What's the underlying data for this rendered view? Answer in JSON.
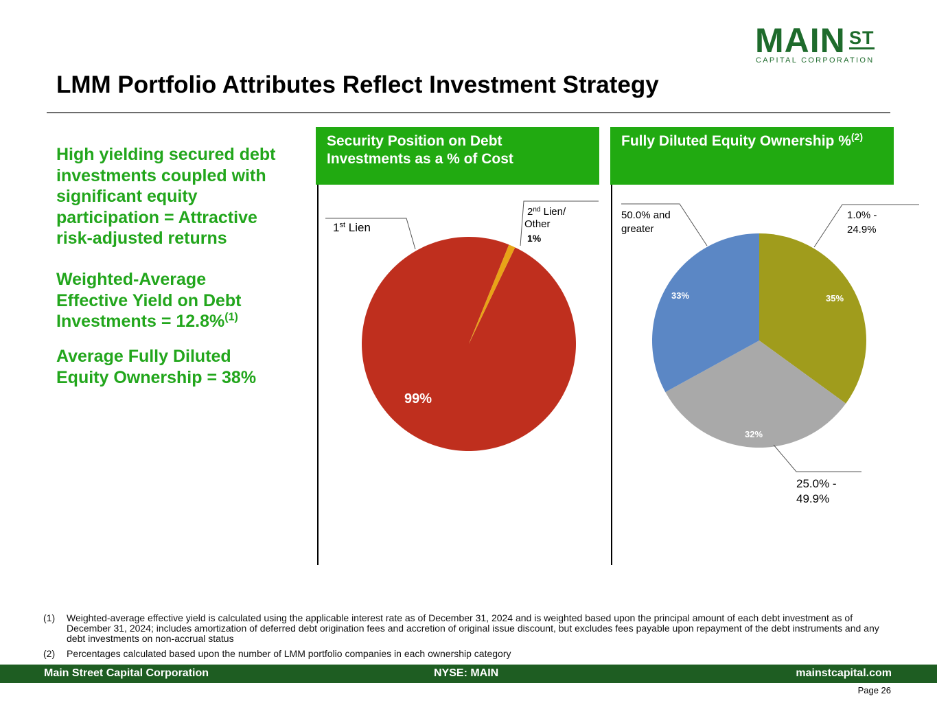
{
  "logo": {
    "main": "MAIN",
    "st": "ST",
    "sub": "CAPITAL CORPORATION"
  },
  "title": "LMM Portfolio Attributes Reflect Investment Strategy",
  "left": {
    "para1": "High yielding secured debt investments coupled with significant equity participation = Attractive risk-adjusted returns",
    "para2_text": "Weighted-Average Effective Yield on Debt Investments = 12.8%",
    "para2_sup": "(1)",
    "para3": "Average Fully Diluted Equity Ownership = 38%"
  },
  "panels": {
    "security_header": "Security Position on Debt Investments as a % of Cost",
    "equity_header": "Fully Diluted Equity Ownership %",
    "equity_header_sup": "(2)"
  },
  "chart_data": [
    {
      "type": "pie",
      "title": "Security Position on Debt Investments as a % of Cost",
      "slices": [
        {
          "label": "1st Lien",
          "label_base": "1",
          "label_sup": "st",
          "label_rest": " Lien",
          "value": 99,
          "value_label": "99%",
          "color": "#bf2f1e"
        },
        {
          "label": "2nd Lien/ Other",
          "label_base": "2",
          "label_sup": "nd",
          "label_rest": " Lien/",
          "label_line2": "Other",
          "value": 1,
          "value_label": "1%",
          "color": "#e8a317"
        }
      ]
    },
    {
      "type": "pie",
      "title": "Fully Diluted Equity Ownership %",
      "slices": [
        {
          "label": "1.0% - 24.9%",
          "label_line1": "1.0% -",
          "label_line2": "24.9%",
          "value": 35,
          "value_label": "35%",
          "color": "#a09c1c"
        },
        {
          "label": "25.0% - 49.9%",
          "label_line1": "25.0% -",
          "label_line2": "49.9%",
          "value": 32,
          "value_label": "32%",
          "color": "#a9a9a9"
        },
        {
          "label": "50.0% and greater",
          "label_line1": "50.0% and",
          "label_line2": "greater",
          "value": 33,
          "value_label": "33%",
          "color": "#5b87c5"
        }
      ]
    }
  ],
  "footnotes": [
    {
      "num": "(1)",
      "text": "Weighted-average effective yield is calculated using the applicable interest rate as of December 31, 2024 and is weighted based upon the principal amount of each debt investment as of December 31, 2024; includes amortization of deferred debt origination fees and accretion of original issue discount, but excludes fees payable upon repayment of the debt instruments and any debt investments on non-accrual status"
    },
    {
      "num": "(2)",
      "text": "Percentages calculated based upon the number of LMM portfolio companies in each ownership category"
    }
  ],
  "footer": {
    "left": "Main Street Capital Corporation",
    "center": "NYSE: MAIN",
    "right": "mainstcapital.com"
  },
  "page": "Page  26",
  "colors": {
    "header_green": "#21aa11",
    "text_green": "#22a61c",
    "footer_green": "#1e5d22",
    "logo_green": "#1e6b2c"
  }
}
